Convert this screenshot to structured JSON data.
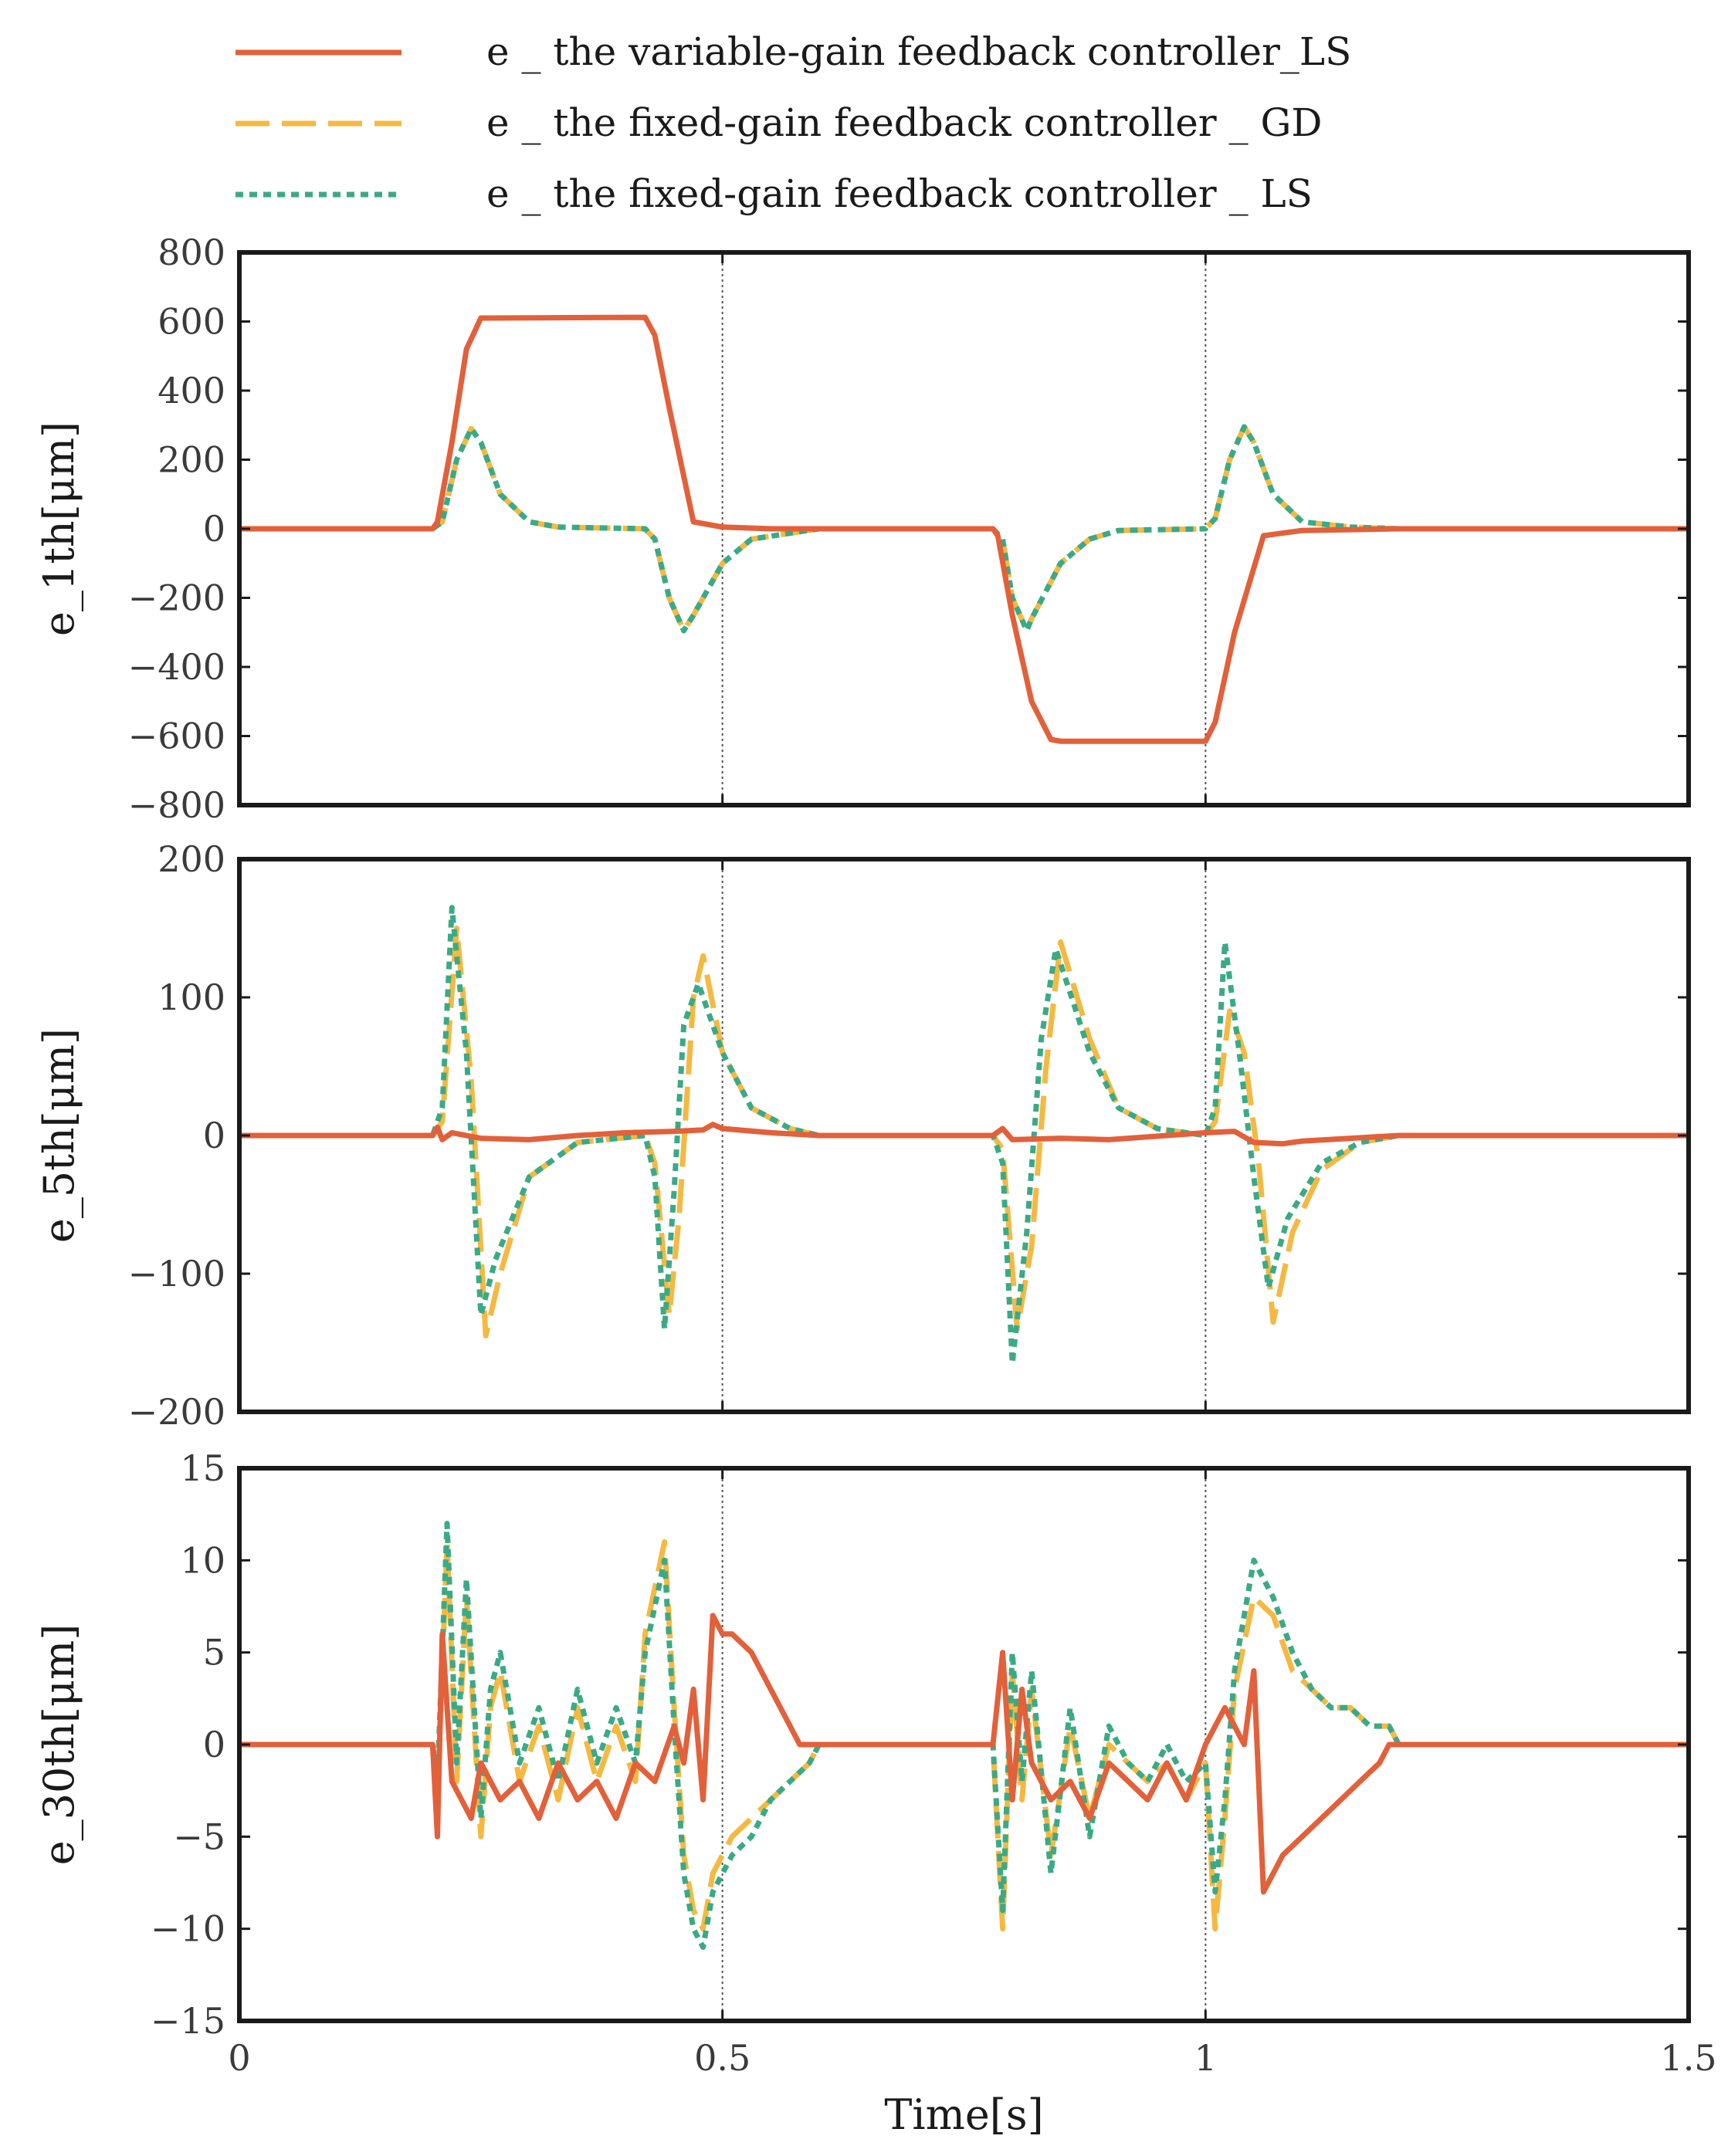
{
  "chart_data": [
    {
      "type": "line",
      "panel": "top",
      "ylabel": "e_1th[μm]",
      "xlabel": "",
      "xlim": [
        0,
        1.5
      ],
      "ylim": [
        -800,
        800
      ],
      "yticks": [
        800,
        600,
        400,
        200,
        0,
        -200,
        -400,
        -600,
        -800
      ],
      "ytick_labels": [
        "800",
        "600",
        "400",
        "200",
        "0",
        "−200",
        "−400",
        "−600",
        "−800"
      ],
      "xticks": [
        0,
        0.5,
        1,
        1.5
      ],
      "xtick_labels": [
        "",
        "",
        "",
        ""
      ],
      "vlines": [
        0.5,
        1.0
      ],
      "series": [
        {
          "name": "e _ the variable-gain feedback controller_LS",
          "color": "#e2603a",
          "style": "solid",
          "x": [
            0,
            0.2,
            0.205,
            0.22,
            0.235,
            0.25,
            0.42,
            0.43,
            0.445,
            0.47,
            0.5,
            0.55,
            0.78,
            0.785,
            0.8,
            0.82,
            0.84,
            0.85,
            1.0,
            1.01,
            1.03,
            1.06,
            1.1,
            1.2,
            1.5
          ],
          "y": [
            0,
            0,
            20,
            250,
            520,
            610,
            612,
            560,
            350,
            20,
            5,
            0,
            0,
            -20,
            -250,
            -500,
            -610,
            -615,
            -615,
            -560,
            -300,
            -20,
            -5,
            0,
            0
          ]
        },
        {
          "name": "e _ the fixed-gain feedback controller _ GD",
          "color": "#f5b942",
          "style": "dashed",
          "x": [
            0,
            0.2,
            0.21,
            0.225,
            0.24,
            0.25,
            0.27,
            0.3,
            0.33,
            0.42,
            0.43,
            0.445,
            0.46,
            0.47,
            0.5,
            0.53,
            0.6,
            0.78,
            0.79,
            0.8,
            0.815,
            0.82,
            0.85,
            0.88,
            0.91,
            1.0,
            1.01,
            1.025,
            1.04,
            1.05,
            1.07,
            1.1,
            1.15,
            1.2,
            1.5
          ],
          "y": [
            0,
            0,
            20,
            200,
            290,
            250,
            100,
            20,
            5,
            0,
            -30,
            -200,
            -295,
            -250,
            -100,
            -30,
            0,
            0,
            -30,
            -200,
            -295,
            -260,
            -100,
            -30,
            -5,
            0,
            30,
            200,
            295,
            250,
            100,
            20,
            5,
            0,
            0
          ]
        },
        {
          "name": "e _ the fixed-gain feedback controller _ LS",
          "color": "#3aaa86",
          "style": "dotted",
          "x": [
            0,
            0.2,
            0.21,
            0.225,
            0.24,
            0.25,
            0.27,
            0.3,
            0.33,
            0.42,
            0.43,
            0.445,
            0.46,
            0.47,
            0.5,
            0.53,
            0.6,
            0.78,
            0.79,
            0.8,
            0.815,
            0.82,
            0.85,
            0.88,
            0.91,
            1.0,
            1.01,
            1.025,
            1.04,
            1.05,
            1.07,
            1.1,
            1.15,
            1.2,
            1.5
          ],
          "y": [
            0,
            0,
            20,
            200,
            290,
            250,
            100,
            20,
            5,
            0,
            -30,
            -200,
            -295,
            -250,
            -100,
            -30,
            0,
            0,
            -30,
            -200,
            -295,
            -260,
            -100,
            -30,
            -5,
            0,
            30,
            200,
            295,
            250,
            100,
            20,
            5,
            0,
            0
          ]
        }
      ]
    },
    {
      "type": "line",
      "panel": "middle",
      "ylabel": "e_5th[μm]",
      "xlabel": "",
      "xlim": [
        0,
        1.5
      ],
      "ylim": [
        -200,
        200
      ],
      "yticks": [
        200,
        100,
        0,
        -100,
        -200
      ],
      "ytick_labels": [
        "200",
        "100",
        "0",
        "−100",
        "−200"
      ],
      "xticks": [
        0,
        0.5,
        1,
        1.5
      ],
      "xtick_labels": [
        "",
        "",
        "",
        ""
      ],
      "vlines": [
        0.5,
        1.0
      ],
      "series": [
        {
          "name": "e _ the variable-gain feedback controller_LS",
          "color": "#e2603a",
          "style": "solid",
          "x": [
            0,
            0.2,
            0.205,
            0.21,
            0.22,
            0.25,
            0.3,
            0.35,
            0.4,
            0.45,
            0.48,
            0.49,
            0.5,
            0.55,
            0.6,
            0.78,
            0.79,
            0.8,
            0.85,
            0.9,
            1.0,
            1.03,
            1.05,
            1.08,
            1.1,
            1.15,
            1.2,
            1.5
          ],
          "y": [
            0,
            0,
            6,
            -3,
            2,
            -2,
            -3,
            0,
            2,
            3,
            4,
            8,
            5,
            2,
            0,
            0,
            5,
            -3,
            -2,
            -3,
            2,
            3,
            -5,
            -6,
            -4,
            -2,
            0,
            0
          ]
        },
        {
          "name": "e _ the fixed-gain feedback controller _ GD",
          "color": "#f5b942",
          "style": "dashed",
          "x": [
            0,
            0.2,
            0.21,
            0.225,
            0.24,
            0.255,
            0.27,
            0.3,
            0.35,
            0.42,
            0.43,
            0.445,
            0.455,
            0.47,
            0.48,
            0.5,
            0.53,
            0.57,
            0.6,
            0.78,
            0.79,
            0.805,
            0.82,
            0.835,
            0.85,
            0.88,
            0.91,
            0.95,
            1.0,
            1.01,
            1.025,
            1.04,
            1.055,
            1.07,
            1.09,
            1.12,
            1.16,
            1.2,
            1.5
          ],
          "y": [
            0,
            0,
            10,
            150,
            40,
            -145,
            -100,
            -30,
            -5,
            0,
            -20,
            -130,
            -60,
            100,
            130,
            60,
            20,
            5,
            0,
            0,
            -10,
            -140,
            -80,
            50,
            140,
            70,
            20,
            5,
            0,
            10,
            90,
            60,
            -20,
            -135,
            -70,
            -25,
            -5,
            0,
            0
          ]
        },
        {
          "name": "e _ the fixed-gain feedback controller _ LS",
          "color": "#3aaa86",
          "style": "dotted",
          "x": [
            0,
            0.2,
            0.21,
            0.22,
            0.235,
            0.25,
            0.265,
            0.3,
            0.35,
            0.42,
            0.43,
            0.44,
            0.45,
            0.46,
            0.475,
            0.5,
            0.53,
            0.57,
            0.6,
            0.78,
            0.79,
            0.8,
            0.815,
            0.83,
            0.845,
            0.88,
            0.91,
            0.95,
            1.0,
            1.01,
            1.02,
            1.035,
            1.05,
            1.065,
            1.085,
            1.12,
            1.16,
            1.2,
            1.5
          ],
          "y": [
            0,
            0,
            20,
            165,
            60,
            -130,
            -90,
            -30,
            -5,
            0,
            -30,
            -140,
            -40,
            80,
            110,
            60,
            20,
            5,
            0,
            0,
            -20,
            -165,
            -70,
            70,
            135,
            60,
            20,
            5,
            0,
            20,
            140,
            60,
            -30,
            -110,
            -60,
            -20,
            -5,
            0,
            0
          ]
        }
      ]
    },
    {
      "type": "line",
      "panel": "bottom",
      "ylabel": "e_30th[μm]",
      "xlabel": "Time[s]",
      "xlim": [
        0,
        1.5
      ],
      "ylim": [
        -15,
        15
      ],
      "yticks": [
        15,
        10,
        5,
        0,
        -5,
        -10,
        -15
      ],
      "ytick_labels": [
        "15",
        "10",
        "5",
        "0",
        "−5",
        "−10",
        "−15"
      ],
      "xticks": [
        0,
        0.5,
        1,
        1.5
      ],
      "xtick_labels": [
        "0",
        "0.5",
        "1",
        "1.5"
      ],
      "vlines": [
        0.5,
        1.0
      ],
      "series": [
        {
          "name": "e _ the variable-gain feedback controller_LS",
          "color": "#e2603a",
          "style": "solid",
          "x": [
            0,
            0.2,
            0.205,
            0.21,
            0.22,
            0.23,
            0.24,
            0.25,
            0.27,
            0.29,
            0.31,
            0.33,
            0.35,
            0.37,
            0.39,
            0.41,
            0.43,
            0.45,
            0.46,
            0.47,
            0.48,
            0.49,
            0.5,
            0.51,
            0.53,
            0.55,
            0.57,
            0.58,
            0.6,
            0.78,
            0.79,
            0.8,
            0.81,
            0.82,
            0.84,
            0.86,
            0.88,
            0.9,
            0.92,
            0.94,
            0.96,
            0.98,
            1.0,
            1.02,
            1.04,
            1.05,
            1.06,
            1.07,
            1.08,
            1.1,
            1.12,
            1.14,
            1.16,
            1.18,
            1.19,
            1.2,
            1.5
          ],
          "y": [
            0,
            0,
            -5,
            6,
            -2,
            -3,
            -4,
            -1,
            -3,
            -2,
            -4,
            -1,
            -3,
            -2,
            -4,
            -1,
            -2,
            1,
            -1,
            3,
            -3,
            7,
            6,
            6,
            5,
            3,
            1,
            0,
            0,
            0,
            5,
            -3,
            3,
            -1,
            -3,
            -2,
            -4,
            -1,
            -2,
            -3,
            -1,
            -3,
            0,
            2,
            0,
            4,
            -8,
            -7,
            -6,
            -5,
            -4,
            -3,
            -2,
            -1,
            0,
            0,
            0
          ]
        },
        {
          "name": "e _ the fixed-gain feedback controller _ GD",
          "color": "#f5b942",
          "style": "dashed",
          "x": [
            0,
            0.2,
            0.205,
            0.215,
            0.225,
            0.235,
            0.25,
            0.26,
            0.27,
            0.29,
            0.31,
            0.33,
            0.35,
            0.37,
            0.39,
            0.41,
            0.42,
            0.44,
            0.45,
            0.46,
            0.47,
            0.48,
            0.49,
            0.51,
            0.53,
            0.55,
            0.57,
            0.59,
            0.6,
            0.78,
            0.79,
            0.8,
            0.81,
            0.82,
            0.84,
            0.86,
            0.88,
            0.9,
            0.92,
            0.94,
            0.96,
            0.98,
            1.0,
            1.01,
            1.02,
            1.03,
            1.05,
            1.07,
            1.09,
            1.11,
            1.13,
            1.15,
            1.17,
            1.19,
            1.2,
            1.5
          ],
          "y": [
            0,
            0,
            -3,
            11,
            -2,
            8,
            -5,
            2,
            4,
            -2,
            1,
            -3,
            2,
            -2,
            1,
            -2,
            6,
            11,
            2,
            -6,
            -9,
            -10,
            -7,
            -5,
            -4,
            -3,
            -2,
            -1,
            0,
            0,
            -10,
            4,
            -3,
            3,
            -6,
            1,
            -4,
            0,
            -1,
            -2,
            -1,
            -3,
            -1,
            -10,
            -4,
            3,
            8,
            7,
            4,
            3,
            2,
            2,
            1,
            1,
            0,
            0
          ]
        },
        {
          "name": "e _ the fixed-gain feedback controller _ LS",
          "color": "#3aaa86",
          "style": "dotted",
          "x": [
            0,
            0.2,
            0.205,
            0.215,
            0.225,
            0.235,
            0.25,
            0.26,
            0.27,
            0.29,
            0.31,
            0.33,
            0.35,
            0.37,
            0.39,
            0.41,
            0.42,
            0.44,
            0.45,
            0.46,
            0.47,
            0.48,
            0.49,
            0.51,
            0.53,
            0.55,
            0.57,
            0.59,
            0.6,
            0.78,
            0.79,
            0.8,
            0.81,
            0.82,
            0.84,
            0.86,
            0.88,
            0.9,
            0.92,
            0.94,
            0.96,
            0.98,
            1.0,
            1.01,
            1.02,
            1.03,
            1.05,
            1.07,
            1.09,
            1.11,
            1.13,
            1.15,
            1.17,
            1.19,
            1.2,
            1.5
          ],
          "y": [
            0,
            0,
            -2,
            12,
            -1,
            9,
            -4,
            3,
            5,
            -1,
            2,
            -2,
            3,
            -1,
            2,
            -1,
            5,
            10,
            1,
            -7,
            -10,
            -11,
            -8,
            -6,
            -5,
            -3,
            -2,
            -1,
            0,
            0,
            -9,
            5,
            -2,
            4,
            -7,
            2,
            -5,
            1,
            -1,
            -2,
            0,
            -2,
            -1,
            -8,
            -3,
            4,
            10,
            8,
            5,
            3,
            2,
            2,
            1,
            1,
            0,
            0
          ]
        }
      ]
    }
  ],
  "legend": {
    "entries": [
      {
        "label": "e _ the variable-gain feedback controller_LS",
        "color": "#e2603a",
        "style": "solid"
      },
      {
        "label": "e _ the fixed-gain feedback controller _ GD",
        "color": "#f5b942",
        "style": "dashed"
      },
      {
        "label": "e _ the fixed-gain feedback controller _ LS",
        "color": "#3aaa86",
        "style": "dotted"
      }
    ],
    "placement": "top"
  }
}
